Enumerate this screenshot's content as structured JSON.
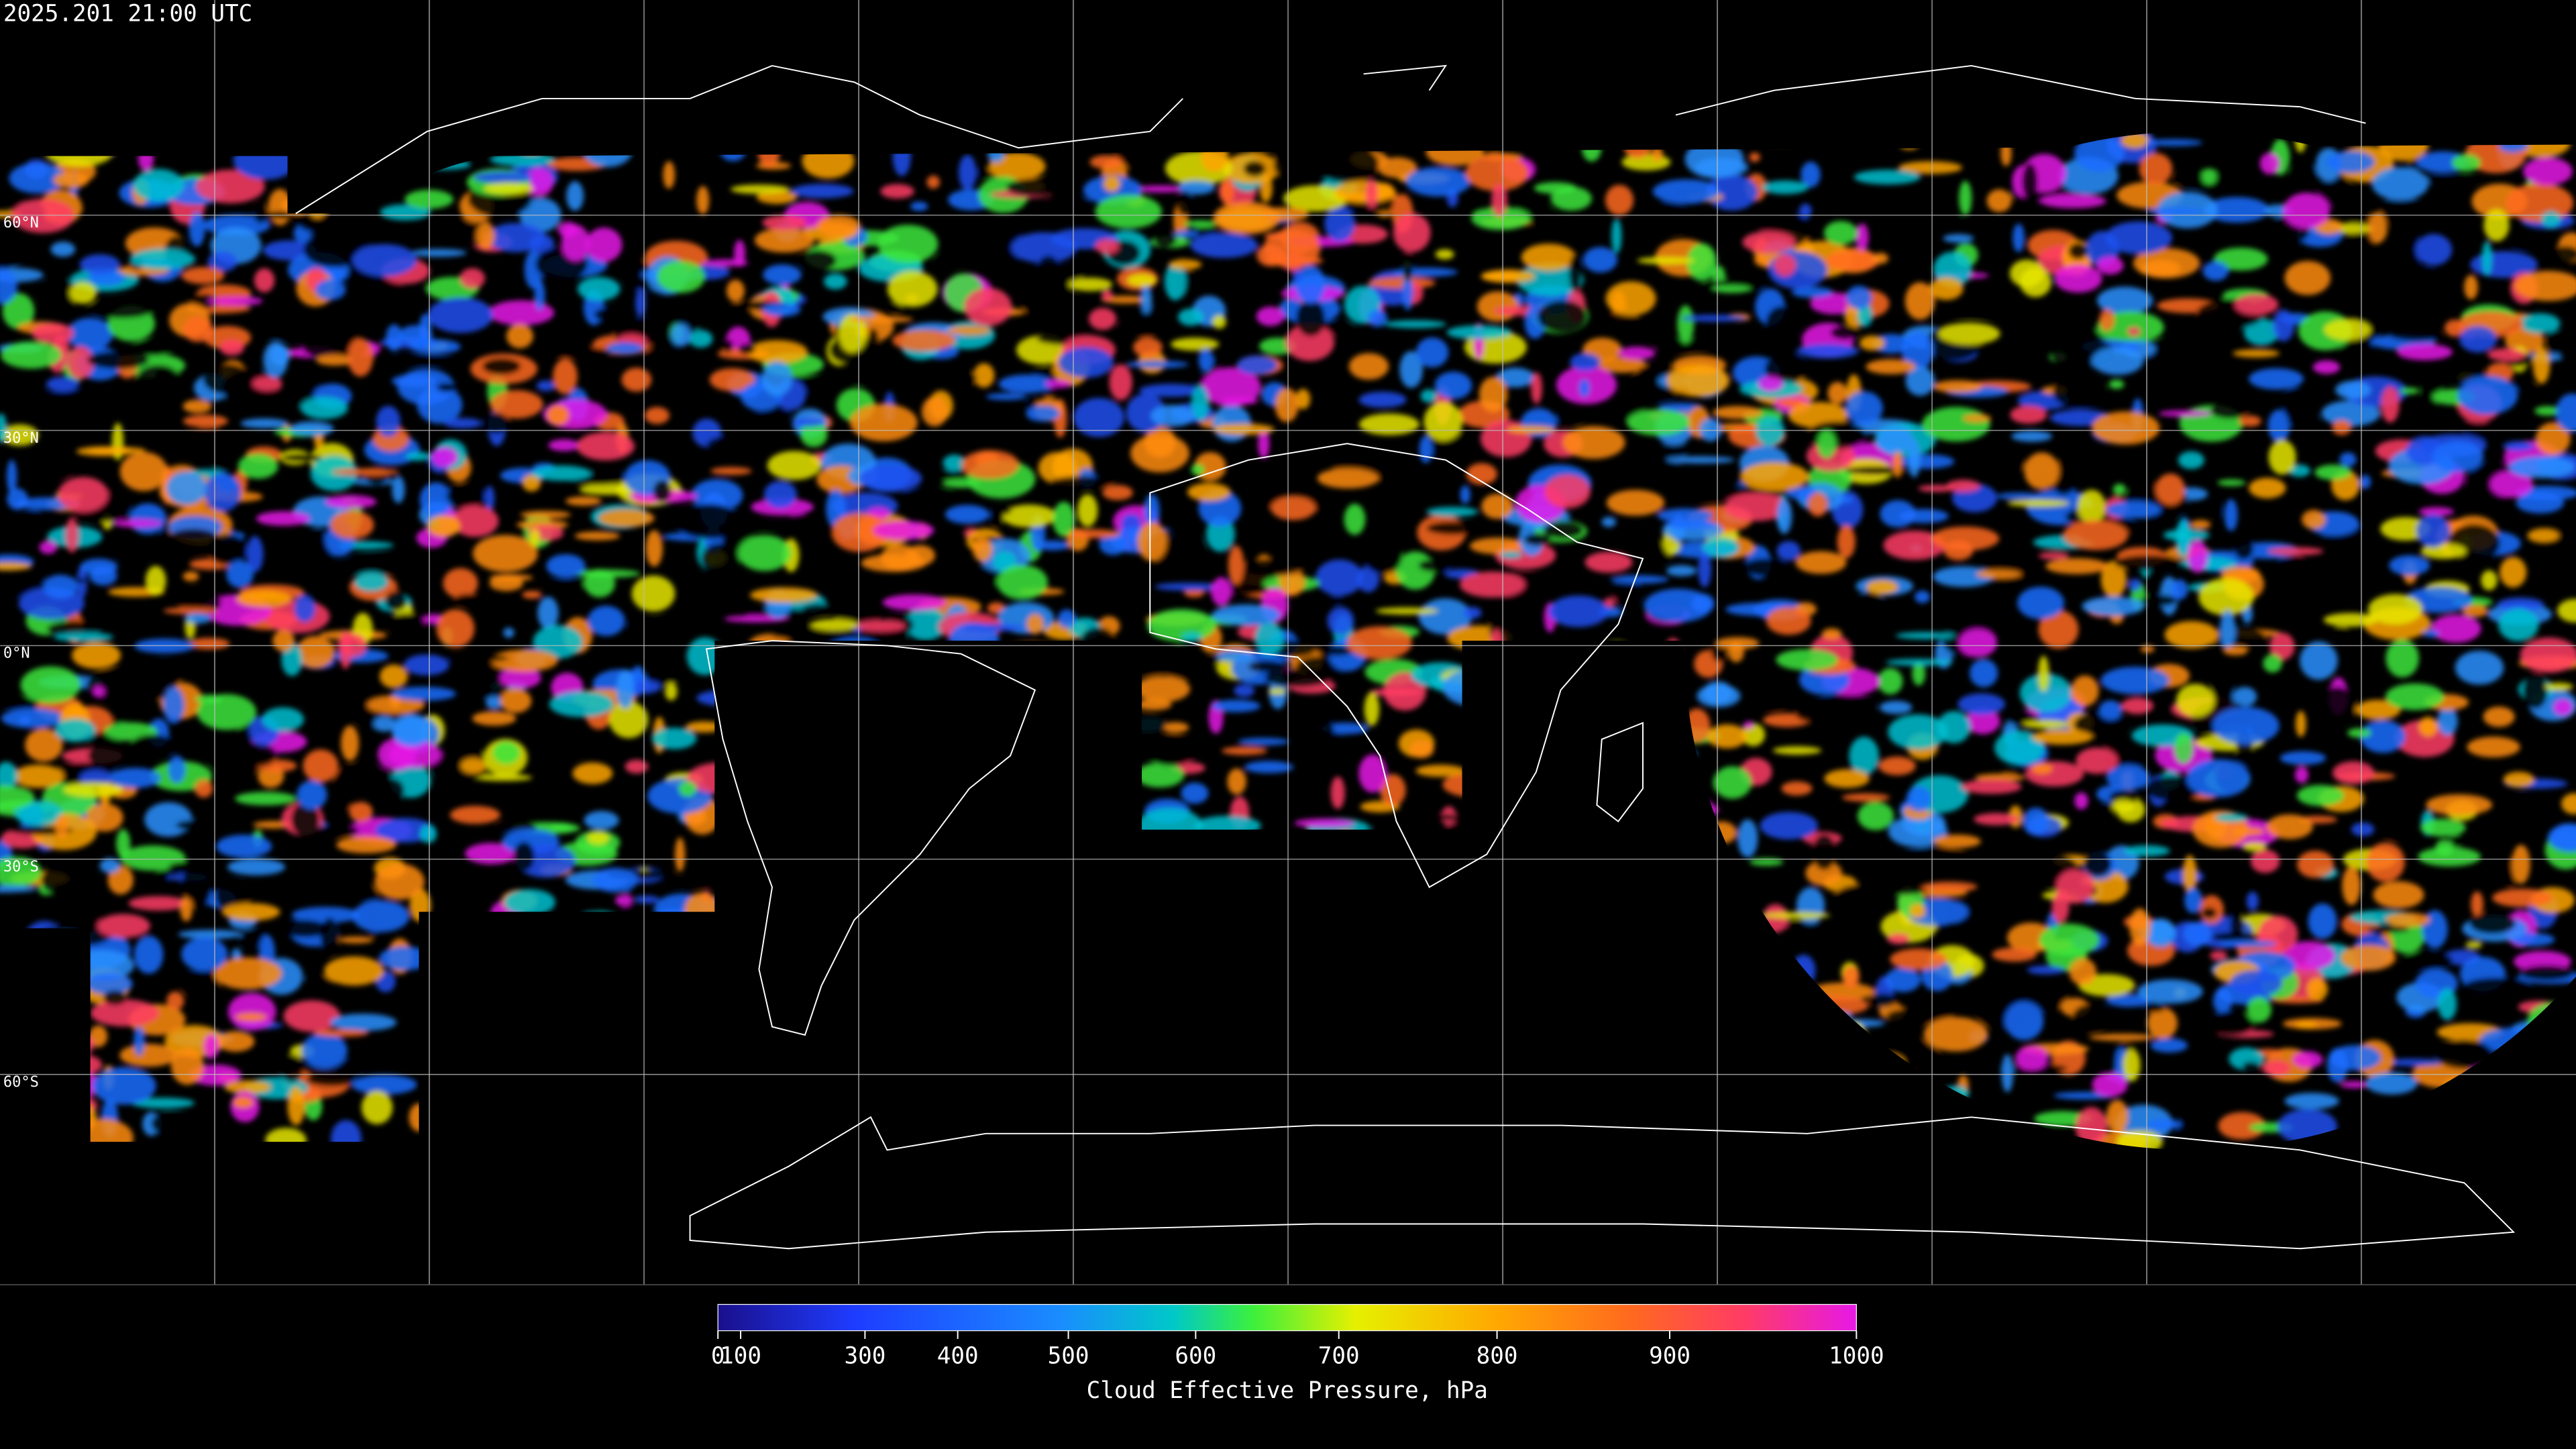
{
  "header": {
    "timestamp": "2025.201 21:00 UTC"
  },
  "map": {
    "latitude_labels": [
      "60°N",
      "30°N",
      "0°N",
      "30°S",
      "60°S"
    ]
  },
  "colorbar": {
    "title": "Cloud Effective Pressure, hPa",
    "range": [
      0,
      1000
    ],
    "ticks": [
      0,
      100,
      300,
      400,
      500,
      600,
      700,
      800,
      900,
      1000
    ]
  }
}
